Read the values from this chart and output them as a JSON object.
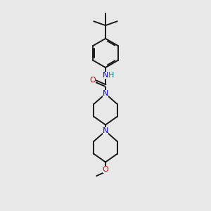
{
  "bg_color": "#e8e8e8",
  "bond_color": "#1a1a1a",
  "N_color": "#0000cc",
  "O_color": "#dd0000",
  "H_color": "#008888",
  "bond_width": 1.4,
  "figsize": [
    3.0,
    3.0
  ],
  "dpi": 100,
  "xlim": [
    0,
    10
  ],
  "ylim": [
    0,
    15
  ]
}
